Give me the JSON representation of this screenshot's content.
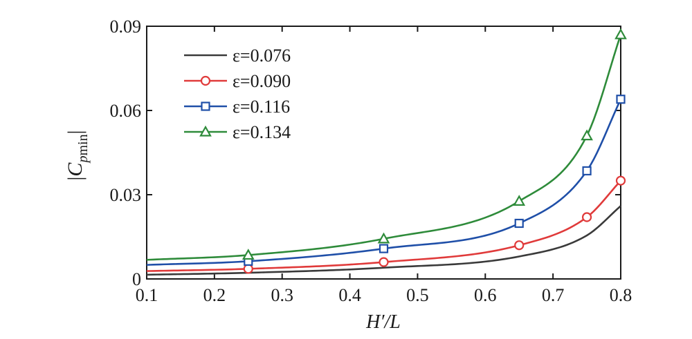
{
  "chart_data": {
    "type": "line",
    "xlabel": "H′/L",
    "ylabel": "|C_pmin|",
    "xlim": [
      0.1,
      0.8
    ],
    "ylim": [
      0,
      0.09
    ],
    "xticks": [
      "0.1",
      "0.2",
      "0.3",
      "0.4",
      "0.5",
      "0.6",
      "0.7",
      "0.8"
    ],
    "yticks": [
      "0",
      "0.03",
      "0.06",
      "0.09"
    ],
    "grid": false,
    "legend_position": "top-left",
    "series": [
      {
        "name": "ε=0.076",
        "color": "#3a3a3a",
        "marker": "none",
        "x": [
          0.1,
          0.25,
          0.45,
          0.65,
          0.75,
          0.8
        ],
        "y": [
          0.0015,
          0.0022,
          0.004,
          0.008,
          0.0155,
          0.026
        ],
        "marker_x": []
      },
      {
        "name": "ε=0.090",
        "color": "#e03a3a",
        "marker": "circle",
        "x": [
          0.1,
          0.25,
          0.45,
          0.65,
          0.75,
          0.8
        ],
        "y": [
          0.0028,
          0.0036,
          0.006,
          0.012,
          0.022,
          0.035
        ],
        "marker_x": [
          0.25,
          0.45,
          0.65,
          0.75,
          0.8
        ]
      },
      {
        "name": "ε=0.116",
        "color": "#1f4fa8",
        "marker": "square",
        "x": [
          0.1,
          0.25,
          0.45,
          0.65,
          0.75,
          0.8
        ],
        "y": [
          0.005,
          0.0063,
          0.0108,
          0.0198,
          0.0385,
          0.064
        ],
        "marker_x": [
          0.25,
          0.45,
          0.65,
          0.75,
          0.8
        ]
      },
      {
        "name": "ε=0.134",
        "color": "#2e8b3a",
        "marker": "triangle",
        "x": [
          0.1,
          0.25,
          0.45,
          0.65,
          0.75,
          0.8
        ],
        "y": [
          0.0068,
          0.0085,
          0.0143,
          0.0277,
          0.051,
          0.087
        ],
        "marker_x": [
          0.25,
          0.45,
          0.65,
          0.75,
          0.8
        ]
      }
    ]
  }
}
